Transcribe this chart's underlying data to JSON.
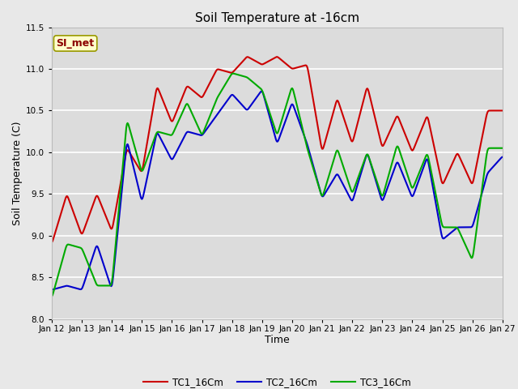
{
  "title": "Soil Temperature at -16cm",
  "xlabel": "Time",
  "ylabel": "Soil Temperature (C)",
  "ylim": [
    8.0,
    11.5
  ],
  "xlim": [
    0,
    360
  ],
  "annotation": "SI_met",
  "annotation_color": "#8B0000",
  "annotation_bg": "#FFFFCC",
  "tick_labels": [
    "Jan 12",
    "Jan 13",
    "Jan 14",
    "Jan 15",
    "Jan 16",
    "Jan 17",
    "Jan 18",
    "Jan 19",
    "Jan 20",
    "Jan 21",
    "Jan 22",
    "Jan 23",
    "Jan 24",
    "Jan 25",
    "Jan 26",
    "Jan 27"
  ],
  "tick_positions": [
    0,
    24,
    48,
    72,
    96,
    120,
    144,
    168,
    192,
    216,
    240,
    264,
    288,
    312,
    336,
    360
  ],
  "series_colors": [
    "#CC0000",
    "#0000CC",
    "#00AA00"
  ],
  "series_names": [
    "TC1_16Cm",
    "TC2_16Cm",
    "TC3_16Cm"
  ],
  "line_width": 1.5,
  "fig_bg_color": "#E8E8E8",
  "plot_bg": "#DCDCDC",
  "grid_color": "#FFFFFF",
  "title_fontsize": 11,
  "label_fontsize": 9,
  "tick_fontsize": 7.5
}
